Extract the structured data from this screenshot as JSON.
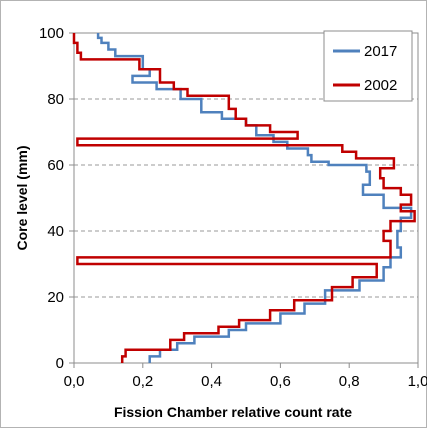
{
  "chart_data": {
    "type": "line",
    "subtype": "step",
    "xlabel": "Fission Chamber relative count rate",
    "ylabel": "Core level (mm)",
    "xlim": [
      0.0,
      1.0
    ],
    "ylim": [
      0,
      100
    ],
    "xticks": [
      "0,0",
      "0,2",
      "0,4",
      "0,6",
      "0,8",
      "1,0"
    ],
    "yticks": [
      "0",
      "20",
      "40",
      "60",
      "80",
      "100"
    ],
    "grid": "horizontal dashed",
    "legend_position": "top-right",
    "series": [
      {
        "name": "2017",
        "color": "#4f81bd",
        "points": [
          [
            0.07,
            100
          ],
          [
            0.07,
            98.5
          ],
          [
            0.08,
            98.5
          ],
          [
            0.08,
            97
          ],
          [
            0.1,
            97
          ],
          [
            0.1,
            95
          ],
          [
            0.12,
            95
          ],
          [
            0.12,
            93
          ],
          [
            0.2,
            93
          ],
          [
            0.2,
            89
          ],
          [
            0.22,
            89
          ],
          [
            0.22,
            87
          ],
          [
            0.17,
            87
          ],
          [
            0.17,
            85
          ],
          [
            0.24,
            85
          ],
          [
            0.24,
            83
          ],
          [
            0.31,
            83
          ],
          [
            0.31,
            80
          ],
          [
            0.37,
            80
          ],
          [
            0.37,
            76
          ],
          [
            0.43,
            76
          ],
          [
            0.43,
            74
          ],
          [
            0.5,
            74
          ],
          [
            0.5,
            72
          ],
          [
            0.53,
            72
          ],
          [
            0.53,
            69
          ],
          [
            0.58,
            69
          ],
          [
            0.58,
            67
          ],
          [
            0.62,
            67
          ],
          [
            0.62,
            65
          ],
          [
            0.68,
            65
          ],
          [
            0.68,
            63
          ],
          [
            0.69,
            63
          ],
          [
            0.69,
            61
          ],
          [
            0.74,
            61
          ],
          [
            0.74,
            60
          ],
          [
            0.85,
            60
          ],
          [
            0.85,
            58
          ],
          [
            0.86,
            58
          ],
          [
            0.86,
            54
          ],
          [
            0.84,
            54
          ],
          [
            0.84,
            51
          ],
          [
            0.9,
            51
          ],
          [
            0.9,
            47
          ],
          [
            0.98,
            47
          ],
          [
            0.98,
            44
          ],
          [
            0.95,
            44
          ],
          [
            0.95,
            40
          ],
          [
            0.94,
            40
          ],
          [
            0.94,
            35
          ],
          [
            0.95,
            35
          ],
          [
            0.95,
            32
          ],
          [
            0.92,
            32
          ],
          [
            0.92,
            29
          ],
          [
            0.9,
            29
          ],
          [
            0.9,
            25
          ],
          [
            0.83,
            25
          ],
          [
            0.83,
            22
          ],
          [
            0.73,
            22
          ],
          [
            0.73,
            18
          ],
          [
            0.67,
            18
          ],
          [
            0.67,
            15
          ],
          [
            0.6,
            15
          ],
          [
            0.6,
            12
          ],
          [
            0.5,
            12
          ],
          [
            0.5,
            10
          ],
          [
            0.45,
            10
          ],
          [
            0.45,
            8
          ],
          [
            0.35,
            8
          ],
          [
            0.35,
            6
          ],
          [
            0.3,
            6
          ],
          [
            0.3,
            4
          ],
          [
            0.25,
            4
          ],
          [
            0.25,
            2
          ],
          [
            0.22,
            2
          ],
          [
            0.22,
            0
          ]
        ]
      },
      {
        "name": "2002",
        "color": "#c00000",
        "points": [
          [
            0.0,
            100
          ],
          [
            0.0,
            97
          ],
          [
            0.01,
            97
          ],
          [
            0.01,
            94
          ],
          [
            0.02,
            94
          ],
          [
            0.02,
            92
          ],
          [
            0.19,
            92
          ],
          [
            0.19,
            89
          ],
          [
            0.25,
            89
          ],
          [
            0.25,
            85
          ],
          [
            0.29,
            85
          ],
          [
            0.29,
            83
          ],
          [
            0.33,
            83
          ],
          [
            0.33,
            81
          ],
          [
            0.45,
            81
          ],
          [
            0.45,
            77
          ],
          [
            0.47,
            77
          ],
          [
            0.47,
            74
          ],
          [
            0.5,
            74
          ],
          [
            0.5,
            72
          ],
          [
            0.57,
            72
          ],
          [
            0.57,
            70
          ],
          [
            0.65,
            70
          ],
          [
            0.65,
            68
          ],
          [
            0.01,
            68
          ],
          [
            0.01,
            66
          ],
          [
            0.78,
            66
          ],
          [
            0.78,
            64
          ],
          [
            0.82,
            64
          ],
          [
            0.82,
            62
          ],
          [
            0.93,
            62
          ],
          [
            0.93,
            59
          ],
          [
            0.89,
            59
          ],
          [
            0.89,
            56
          ],
          [
            0.9,
            56
          ],
          [
            0.9,
            53
          ],
          [
            0.95,
            53
          ],
          [
            0.95,
            51
          ],
          [
            0.98,
            51
          ],
          [
            0.98,
            48
          ],
          [
            0.95,
            48
          ],
          [
            0.95,
            46
          ],
          [
            0.99,
            46
          ],
          [
            0.99,
            43
          ],
          [
            0.92,
            43
          ],
          [
            0.92,
            40
          ],
          [
            0.9,
            40
          ],
          [
            0.9,
            37
          ],
          [
            0.92,
            37
          ],
          [
            0.92,
            32
          ],
          [
            0.01,
            32
          ],
          [
            0.01,
            30
          ],
          [
            0.88,
            30
          ],
          [
            0.88,
            26
          ],
          [
            0.81,
            26
          ],
          [
            0.81,
            23
          ],
          [
            0.75,
            23
          ],
          [
            0.75,
            19
          ],
          [
            0.64,
            19
          ],
          [
            0.64,
            16
          ],
          [
            0.57,
            16
          ],
          [
            0.57,
            13
          ],
          [
            0.48,
            13
          ],
          [
            0.48,
            11
          ],
          [
            0.42,
            11
          ],
          [
            0.42,
            9
          ],
          [
            0.32,
            9
          ],
          [
            0.32,
            7
          ],
          [
            0.28,
            7
          ],
          [
            0.28,
            4
          ],
          [
            0.15,
            4
          ],
          [
            0.15,
            2
          ],
          [
            0.14,
            2
          ],
          [
            0.14,
            0
          ]
        ]
      }
    ]
  }
}
